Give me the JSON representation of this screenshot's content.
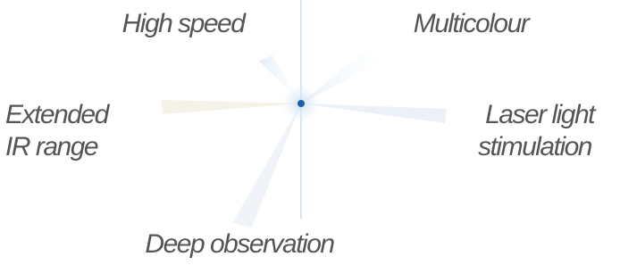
{
  "nodes": [
    {
      "lines": [
        "High speed"
      ]
    },
    {
      "lines": [
        "Multicolour"
      ]
    },
    {
      "lines": [
        "Extended",
        "IR range"
      ]
    },
    {
      "lines": [
        "Laser light",
        "stimulation"
      ]
    },
    {
      "lines": [
        "Deep observation"
      ]
    }
  ]
}
